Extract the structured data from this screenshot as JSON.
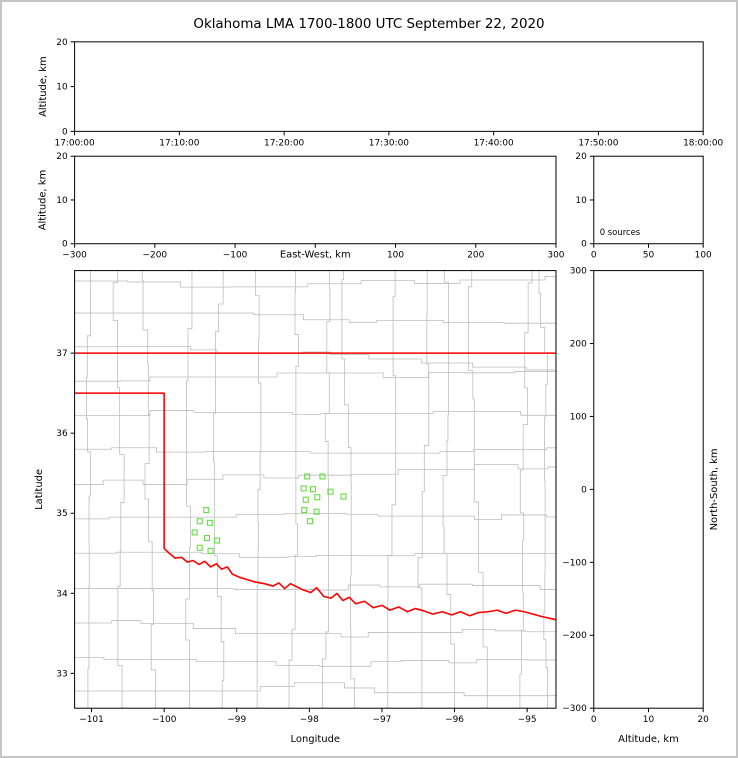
{
  "title": "Oklahoma LMA 1700-1800 UTC September 22, 2020",
  "colors": {
    "background": "#ffffff",
    "frame": "#000000",
    "county_line": "#bdbdbd",
    "state_line": "#fe0000",
    "source_marker": "#63dd3f"
  },
  "chart_data": [
    {
      "id": "time_height",
      "type": "scatter",
      "xlabel": "",
      "ylabel": "Altitude, km",
      "xlim": [
        0,
        6
      ],
      "xticks": [
        0,
        1,
        2,
        3,
        4,
        5,
        6
      ],
      "xtick_labels": [
        "17:00:00",
        "17:10:00",
        "17:20:00",
        "17:30:00",
        "17:40:00",
        "17:50:00",
        "18:00:00"
      ],
      "ylim": [
        0,
        20
      ],
      "yticks": [
        0,
        10,
        20
      ],
      "ytick_labels": [
        "0",
        "10",
        "20"
      ],
      "points": []
    },
    {
      "id": "ew_height",
      "type": "scatter",
      "xlabel": "East-West, km",
      "ylabel": "Altitude, km",
      "xlim": [
        -300,
        300
      ],
      "xticks": [
        -300,
        -200,
        -100,
        0,
        100,
        200,
        300
      ],
      "xtick_labels": [
        "−300",
        "−200",
        "−100",
        "",
        "100",
        "200",
        "300"
      ],
      "ylim": [
        0,
        20
      ],
      "yticks": [
        0,
        10,
        20
      ],
      "ytick_labels": [
        "0",
        "10",
        "20"
      ],
      "points": []
    },
    {
      "id": "alt_hist",
      "type": "scatter",
      "xlabel": "",
      "ylabel": "",
      "annotation": "0 sources",
      "xlim": [
        0,
        100
      ],
      "xticks": [
        0,
        50,
        100
      ],
      "xtick_labels": [
        "0",
        "50",
        "100"
      ],
      "ylim": [
        0,
        20
      ],
      "yticks": [
        0,
        10,
        20
      ],
      "ytick_labels": [
        "0",
        "10",
        "20"
      ],
      "points": []
    },
    {
      "id": "map",
      "type": "scatter",
      "xlabel": "Longitude",
      "ylabel": "Latitude",
      "xlim": [
        -101.233,
        -94.603
      ],
      "xticks": [
        -101,
        -100,
        -99,
        -98,
        -97,
        -96,
        -95
      ],
      "xtick_labels": [
        "−101",
        "−100",
        "−99",
        "−98",
        "−97",
        "−96",
        "−95"
      ],
      "ylim": [
        32.565,
        38.031
      ],
      "yticks": [
        33,
        34,
        35,
        36,
        37
      ],
      "ytick_labels": [
        "33",
        "34",
        "35",
        "36",
        "37"
      ],
      "county_grid": {
        "verticals": [
          -101.05,
          -100.58,
          -100.12,
          -99.65,
          -99.2,
          -98.72,
          -98.28,
          -97.82,
          -97.38,
          -96.92,
          -96.45,
          -96.0,
          -95.55,
          -95.1,
          -94.72
        ],
        "horizontals": [
          32.78,
          33.2,
          33.63,
          34.06,
          34.5,
          34.93,
          35.36,
          35.8,
          36.22,
          36.65,
          37.08,
          37.5,
          37.9
        ],
        "jog": 0.13,
        "seed": 11
      },
      "state_boundary": [
        [
          [
            -101.24,
            37.0
          ],
          [
            -94.6,
            37.0
          ]
        ],
        [
          [
            -101.24,
            36.5
          ],
          [
            -100.0,
            36.5
          ],
          [
            -100.0,
            34.56
          ],
          [
            -99.93,
            34.5
          ],
          [
            -99.85,
            34.44
          ],
          [
            -99.76,
            34.45
          ],
          [
            -99.68,
            34.39
          ],
          [
            -99.6,
            34.41
          ],
          [
            -99.52,
            34.36
          ],
          [
            -99.44,
            34.4
          ],
          [
            -99.36,
            34.33
          ],
          [
            -99.28,
            34.37
          ],
          [
            -99.21,
            34.3
          ],
          [
            -99.13,
            34.33
          ],
          [
            -99.06,
            34.24
          ],
          [
            -98.96,
            34.2
          ],
          [
            -98.85,
            34.17
          ],
          [
            -98.74,
            34.14
          ],
          [
            -98.62,
            34.12
          ],
          [
            -98.5,
            34.09
          ],
          [
            -98.42,
            34.13
          ],
          [
            -98.34,
            34.06
          ],
          [
            -98.26,
            34.12
          ],
          [
            -98.17,
            34.08
          ],
          [
            -98.08,
            34.04
          ],
          [
            -97.98,
            34.01
          ],
          [
            -97.9,
            34.07
          ],
          [
            -97.8,
            33.96
          ],
          [
            -97.7,
            33.94
          ],
          [
            -97.62,
            34.0
          ],
          [
            -97.54,
            33.91
          ],
          [
            -97.45,
            33.95
          ],
          [
            -97.36,
            33.87
          ],
          [
            -97.24,
            33.9
          ],
          [
            -97.12,
            33.82
          ],
          [
            -97.0,
            33.85
          ],
          [
            -96.89,
            33.79
          ],
          [
            -96.77,
            33.83
          ],
          [
            -96.65,
            33.77
          ],
          [
            -96.54,
            33.81
          ],
          [
            -96.42,
            33.78
          ],
          [
            -96.3,
            33.74
          ],
          [
            -96.17,
            33.77
          ],
          [
            -96.04,
            33.73
          ],
          [
            -95.92,
            33.77
          ],
          [
            -95.79,
            33.72
          ],
          [
            -95.67,
            33.76
          ],
          [
            -95.54,
            33.77
          ],
          [
            -95.41,
            33.79
          ],
          [
            -95.29,
            33.75
          ],
          [
            -95.16,
            33.79
          ],
          [
            -95.04,
            33.77
          ],
          [
            -94.92,
            33.74
          ],
          [
            -94.8,
            33.71
          ],
          [
            -94.6,
            33.67
          ]
        ]
      ],
      "sources": [
        [
          -99.42,
          35.04
        ],
        [
          -99.51,
          34.9
        ],
        [
          -99.37,
          34.88
        ],
        [
          -99.58,
          34.76
        ],
        [
          -99.41,
          34.69
        ],
        [
          -99.27,
          34.66
        ],
        [
          -99.51,
          34.57
        ],
        [
          -99.36,
          34.53
        ],
        [
          -98.03,
          35.46
        ],
        [
          -97.82,
          35.46
        ],
        [
          -98.08,
          35.31
        ],
        [
          -97.95,
          35.3
        ],
        [
          -98.05,
          35.17
        ],
        [
          -97.89,
          35.2
        ],
        [
          -97.71,
          35.27
        ],
        [
          -97.53,
          35.21
        ],
        [
          -98.07,
          35.04
        ],
        [
          -97.9,
          35.02
        ],
        [
          -97.99,
          34.9
        ]
      ]
    },
    {
      "id": "ns_height",
      "type": "scatter",
      "xlabel": "Altitude, km",
      "ylabel": "North-South, km",
      "xlim": [
        0,
        20
      ],
      "xticks": [
        0,
        10,
        20
      ],
      "xtick_labels": [
        "0",
        "10",
        "20"
      ],
      "ylim": [
        -300,
        300
      ],
      "yticks": [
        -300,
        -200,
        -100,
        0,
        100,
        200,
        300
      ],
      "ytick_labels": [
        "−300",
        "−200",
        "−100",
        "0",
        "100",
        "200",
        "300"
      ],
      "points": []
    }
  ]
}
